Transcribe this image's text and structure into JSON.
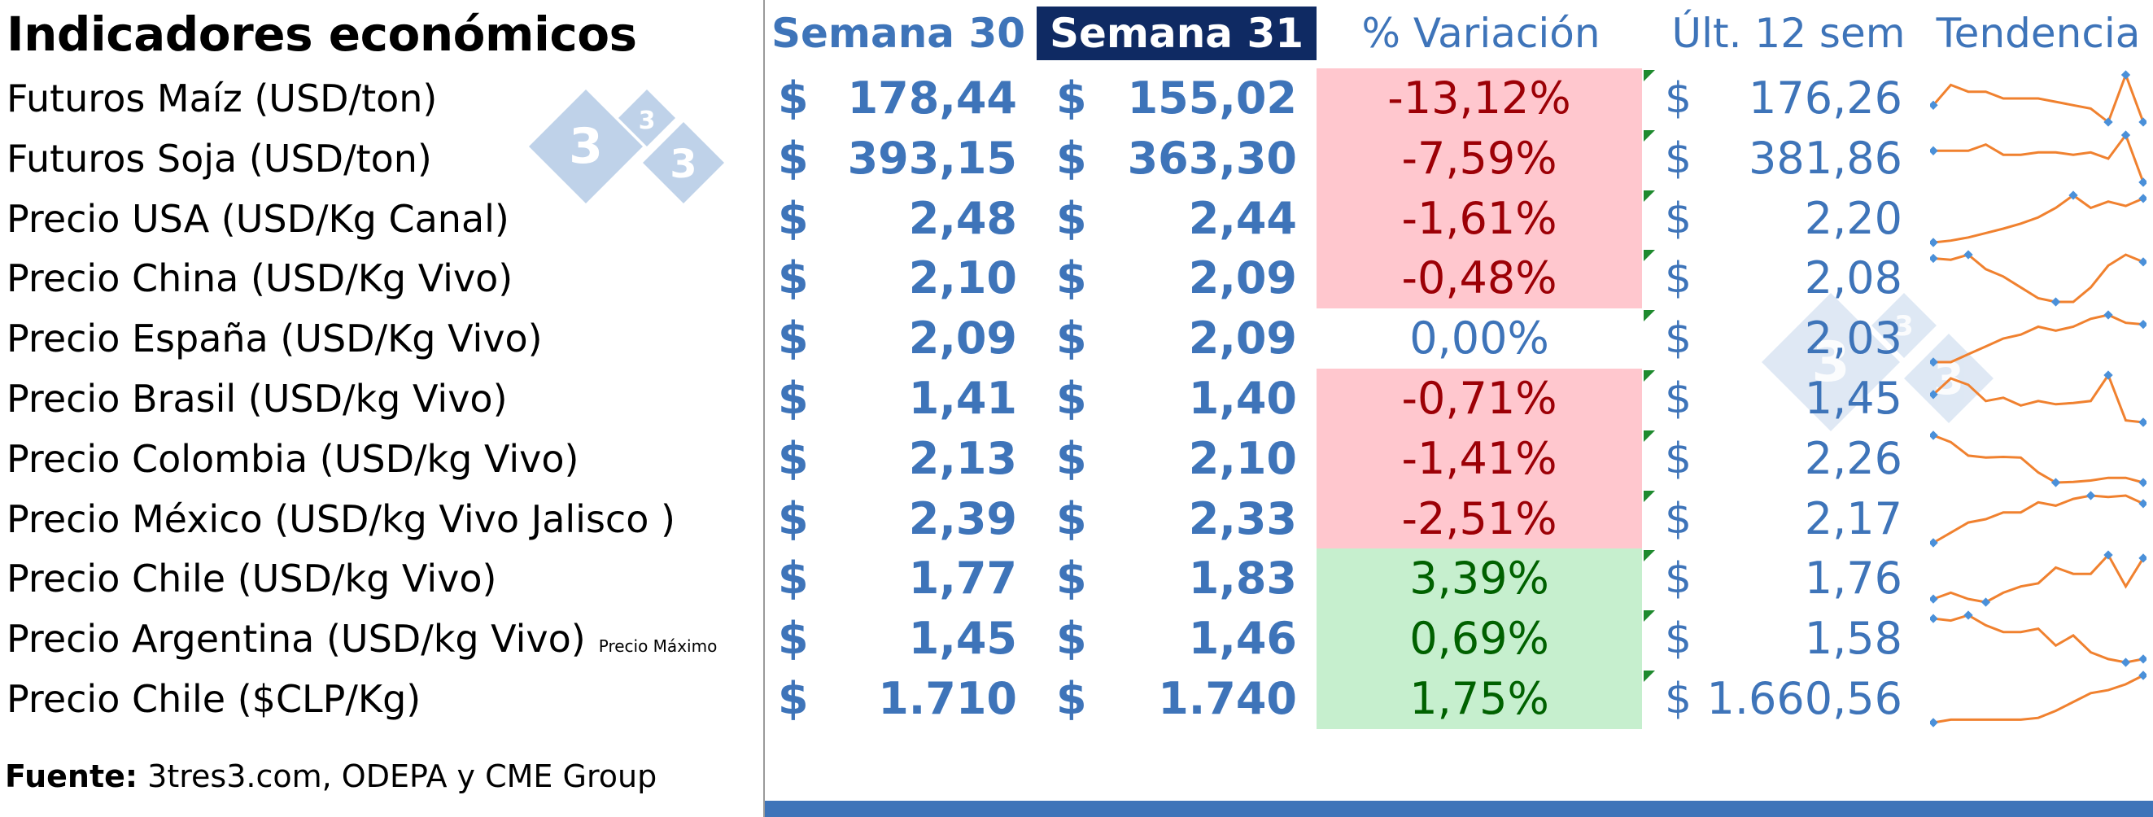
{
  "title": "Indicadores económicos",
  "headers": {
    "week_prev": "Semana 30",
    "week_curr": "Semana 31",
    "variation": "% Variación",
    "last12": "Últ. 12 sem",
    "trend": "Tendencia"
  },
  "currency_symbol": "$",
  "rows": [
    {
      "label": "Futuros Maíz (USD/ton)",
      "note": "",
      "w30": "178,44",
      "w31": "155,02",
      "variation": "-13,12%",
      "variation_sign": "neg",
      "last12": "176,26",
      "trend": [
        4,
        7,
        6,
        6,
        5,
        5,
        5,
        4.5,
        4,
        3.5,
        1.5,
        8.5,
        1.5
      ]
    },
    {
      "label": "Futuros Soja (USD/ton)",
      "note": "",
      "w30": "393,15",
      "w31": "363,30",
      "variation": "-7,59%",
      "variation_sign": "neg",
      "last12": "381,86",
      "trend": [
        5,
        5,
        5,
        5.8,
        4.5,
        4.5,
        4.8,
        4.8,
        4.5,
        4.8,
        4,
        7,
        1
      ]
    },
    {
      "label": "Precio USA (USD/Kg Canal)",
      "note": "",
      "w30": "2,48",
      "w31": "2,44",
      "variation": "-1,61%",
      "variation_sign": "neg",
      "last12": "2,20",
      "trend": [
        1,
        1.3,
        1.8,
        2.5,
        3.2,
        4,
        5,
        6.5,
        8.5,
        6.5,
        7.5,
        6.8,
        8
      ]
    },
    {
      "label": "Precio China (USD/Kg Vivo)",
      "note": "",
      "w30": "2,10",
      "w31": "2,09",
      "variation": "-0,48%",
      "variation_sign": "neg",
      "last12": "2,08",
      "trend": [
        7.5,
        7.3,
        8,
        6,
        5,
        3.5,
        2,
        1.5,
        1.5,
        3.5,
        6.5,
        8,
        7
      ]
    },
    {
      "label": "Precio España (USD/Kg Vivo)",
      "note": "",
      "w30": "2,09",
      "w31": "2,09",
      "variation": "0,00%",
      "variation_sign": "zero",
      "last12": "2,03",
      "trend": [
        1.5,
        1.5,
        2.5,
        3.5,
        4.5,
        5,
        6,
        5.5,
        6,
        7,
        7.5,
        6.5,
        6.3
      ]
    },
    {
      "label": "Precio  Brasil (USD/kg Vivo)",
      "note": "",
      "w30": "1,41",
      "w31": "1,40",
      "variation": "-0,71%",
      "variation_sign": "neg",
      "last12": "1,45",
      "trend": [
        5.5,
        8,
        7,
        4.5,
        5,
        3.8,
        4.5,
        4,
        4.2,
        4.5,
        8.5,
        1.5,
        1.2
      ]
    },
    {
      "label": "Precio Colombia (USD/kg Vivo)",
      "note": "",
      "w30": "2,13",
      "w31": "2,10",
      "variation": "-1,41%",
      "variation_sign": "neg",
      "last12": "2,26",
      "trend": [
        8.5,
        7.5,
        5.5,
        5.2,
        5.3,
        5.2,
        3,
        1.5,
        1.6,
        1.8,
        2.2,
        2.2,
        1.5
      ]
    },
    {
      "label": "Precio México (USD/kg Vivo Jalisco )",
      "note": "",
      "w30": "2,39",
      "w31": "2,33",
      "variation": "-2,51%",
      "variation_sign": "neg",
      "last12": "2,17",
      "trend": [
        1,
        2.5,
        4,
        4.5,
        5.5,
        5.5,
        7,
        6.5,
        7.5,
        8,
        7.8,
        8,
        6.8
      ]
    },
    {
      "label": "Precio Chile (USD/kg Vivo)",
      "note": "",
      "w30": "1,77",
      "w31": "1,83",
      "variation": "3,39%",
      "variation_sign": "pos",
      "last12": "1,76",
      "trend": [
        1.5,
        2.5,
        1.5,
        1,
        2.5,
        3.5,
        4,
        6.5,
        5.5,
        5.5,
        8.5,
        3.5,
        8
      ]
    },
    {
      "label": "Precio Argentina (USD/kg Vivo)",
      "note": "Precio Máximo",
      "w30": "1,45",
      "w31": "1,46",
      "variation": "0,69%",
      "variation_sign": "pos",
      "last12": "1,58",
      "trend": [
        7.5,
        7.2,
        8,
        6.5,
        5.5,
        5.5,
        6,
        3.5,
        5,
        2.5,
        1.5,
        1,
        1.5
      ]
    },
    {
      "label": "Precio Chile ($CLP/Kg)",
      "note": "",
      "w30": "1.710",
      "w31": "1.740",
      "variation": "1,75%",
      "variation_sign": "pos",
      "last12": "1.660,56",
      "trend": [
        1,
        1.5,
        1.5,
        1.5,
        1.5,
        1.5,
        1.8,
        3,
        4.5,
        6,
        6.5,
        7.5,
        9
      ]
    }
  ],
  "source_label": "Fuente:",
  "source_text": "3tres3.com, ODEPA y CME Group",
  "watermark_glyph": "3",
  "colors": {
    "accent_blue": "#3e74b9",
    "header_navy": "#0f2a63",
    "neg_bg": "#ffc7ce",
    "neg_text": "#9c0006",
    "pos_bg": "#c6efce",
    "pos_text": "#006100",
    "sparkline": "#f0812f",
    "sparkline_marker": "#4a90d9"
  }
}
